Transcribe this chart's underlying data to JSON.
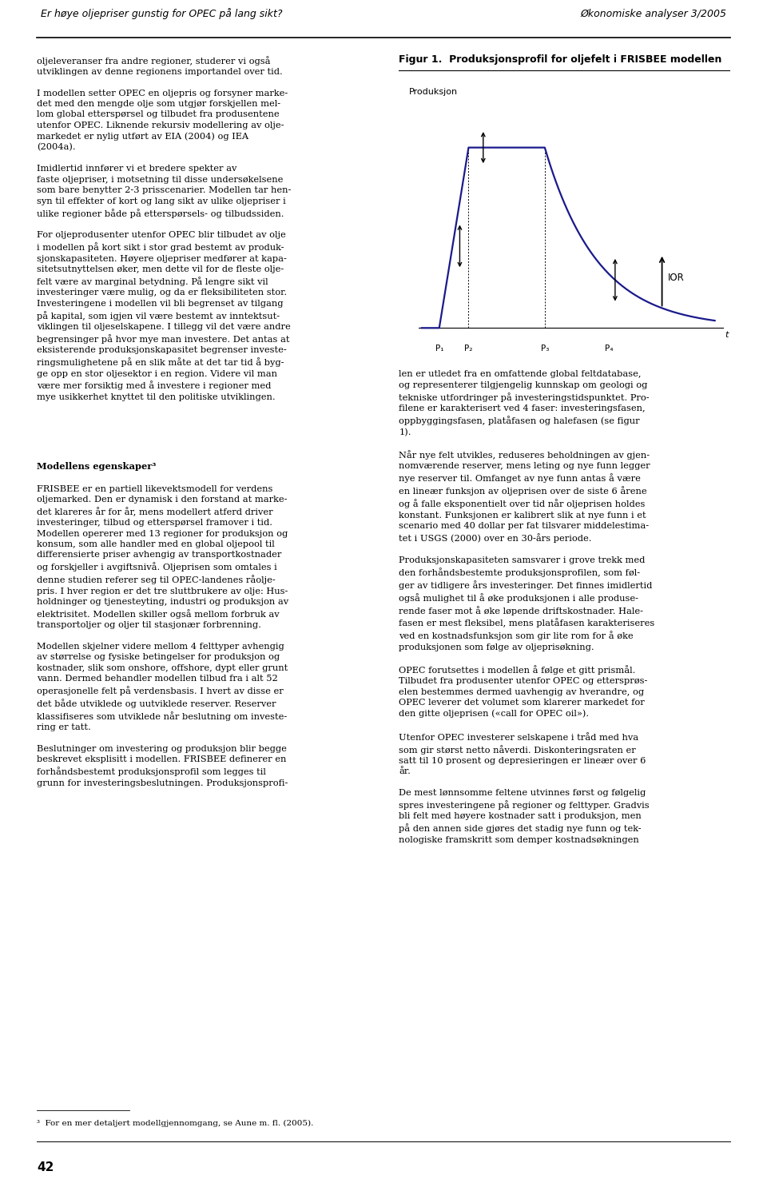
{
  "page_title_left": "Er høye oljepriser gunstig for OPEC på lang sikt?",
  "page_title_right": "Økonomiske analyser 3/2005",
  "page_number": "42",
  "fig_title": "Figur 1.  Produksjonsprofil for oljefelt i FRISBEE modellen",
  "fig_ylabel": "Produksjon",
  "fig_xlabel": "t",
  "fig_p_labels": [
    "P₁",
    "P₂",
    "P₃",
    "P₄"
  ],
  "fig_ior_label": "IOR",
  "curve_color": "#1a1a8c",
  "background_color": "#ffffff",
  "text_color": "#000000",
  "left_text": "oljeleveranser fra andre regioner, studerer vi også\nutviklingen av denne regionens importandel over tid.\n\nI modellen setter OPEC en oljepris og forsyner marke-\ndet med den mengde olje som utgjør forskjellen mel-\nlom global etterspørsel og tilbudet fra produsentene\nutenfor OPEC. Liknende rekursiv modellering av olje-\nmarkedet er nylig utført av EIA (2004) og IEA\n(2004a).\n\nImidlertid innfører vi et bredere spekter av\nfaste oljepriser, i motsetning til disse undersøkelsene\nsom bare benytter 2-3 prisscenarier. Modellen tar hen-\nsyn til effekter of kort og lang sikt av ulike oljepriser i\nulike regioner både på etterspørsels- og tilbudssiden.\n\nFor oljeprodusenter utenfor OPEC blir tilbudet av olje\ni modellen på kort sikt i stor grad bestemt av produk-\nsjonskapasiteten. Høyere oljepriser medfører at kapa-\nsitetsutnyttelsen øker, men dette vil for de fleste olje-\nfelt være av marginal betydning. På lengre sikt vil\ninvesteringer være mulig, og da er fleksibiliteten stor.\nInvesteringene i modellen vil bli begrenset av tilgang\npå kapital, som igjen vil være bestemt av inntektsut-\nviklingen til oljeselskapene. I tillegg vil det være andre\nbegrensinger på hvor mye man investere. Det antas at\neksisterende produksjonskapasitet begrenser investe-\nringsmulighetene på en slik måte at det tar tid å byg-\nge opp en stor oljesektor i en region. Videre vil man\nvære mer forsiktig med å investere i regioner med\nmye usikkerhet knyttet til den politiske utviklingen.",
  "left_header": "Modellens egenskaper³",
  "left_text2": "FRISBEE er en partiell likevektsmodell for verdens\noljemarked. Den er dynamisk i den forstand at marke-\ndet klareres år for år, mens modellert atferd driver\ninvesteringer, tilbud og etterspørsel framover i tid.\nModellen opererer med 13 regioner for produksjon og\nkonsum, som alle handler med en global oljepool til\ndifferensierte priser avhengig av transportkostnader\nog forskjeller i avgiftsnivå. Oljeprisen som omtales i\ndenne studien referer seg til OPEC-landenes råolje-\npris. I hver region er det tre sluttbrukere av olje: Hus-\nholdninger og tjenesteyting, industri og produksjon av\nelektrisitet. Modellen skiller også mellom forbruk av\ntransportoljer og oljer til stasjonær forbrenning.\n\nModellen skjelner videre mellom 4 felttyper avhengig\nav størrelse og fysiske betingelser for produksjon og\nkostnader, slik som onshore, offshore, dypt eller grunt\nvann. Dermed behandler modellen tilbud fra i alt 52\noperasjonelle felt på verdensbasis. I hvert av disse er\ndet både utviklede og uutviklede reserver. Reserver\nklassifiseres som utviklede når beslutning om investe-\nring er tatt.\n\nBeslutninger om investering og produksjon blir begge\nbeskrevet eksplisitt i modellen. FRISBEE definerer en\nforhåndsbestemt produksjonsprofil som legges til\ngrunn for investeringsbeslutningen. Produksjonsprofi-",
  "footnote": "³  For en mer detaljert modellgjennomgang, se Aune m. fl. (2005).",
  "right_text": "len er utledet fra en omfattende global feltdatabase,\nog representerer tilgjengelig kunnskap om geologi og\ntekniske utfordringer på investeringstidspunktet. Pro-\nfilene er karakterisert ved 4 faser: investeringsfasen,\noppbyggingsfasen, platåfasen og halefasen (se figur\n1).\n\nNår nye felt utvikles, reduseres beholdningen av gjen-\nnomværende reserver, mens leting og nye funn legger\nnye reserver til. Omfanget av nye funn antas å være\nen lineær funksjon av oljeprisen over de siste 6 årene\nog å falle eksponentielt over tid når oljeprisen holdes\nkonstant. Funksjonen er kalibrert slik at nye funn i et\nscenario med 40 dollar per fat tilsvarer middelestima-\ntet i USGS (2000) over en 30-års periode.\n\nProduksjonskapasiteten samsvarer i grove trekk med\nden forhåndsbestemte produksjonsprofilen, som føl-\nger av tidligere års investeringer. Det finnes imidlertid\nogså mulighet til å øke produksjonen i alle produse-\nrende faser mot å øke løpende driftskostnader. Hale-\nfasen er mest fleksibel, mens platåfasen karakteriseres\nved en kostnadsfunksjon som gir lite rom for å øke\nproduksjonen som følge av oljeprisøkning.\n\nOPEC forutsettes i modellen å følge et gitt prismål.\nTilbudet fra produsenter utenfor OPEC og ettersprøs-\nelen bestemmes dermed uavhengig av hverandre, og\nOPEC leverer det volumet som klarerer markedet for\nden gitte oljeprisen («call for OPEC oil»).\n\nUtenfor OPEC investerer selskapene i tråd med hva\nsom gir størst netto nåverdi. Diskonteringsraten er\nsatt til 10 prosent og depresieringen er lineær over 6\når.\n\nDe mest lønnsomme feltene utvinnes først og følgelig\nspres investeringene på regioner og felttyper. Gradvis\nbli felt med høyere kostnader satt i produksjon, men\npå den annen side gjøres det stadig nye funn og tek-\nnologiske framskritt som demper kostnadsøkningen"
}
